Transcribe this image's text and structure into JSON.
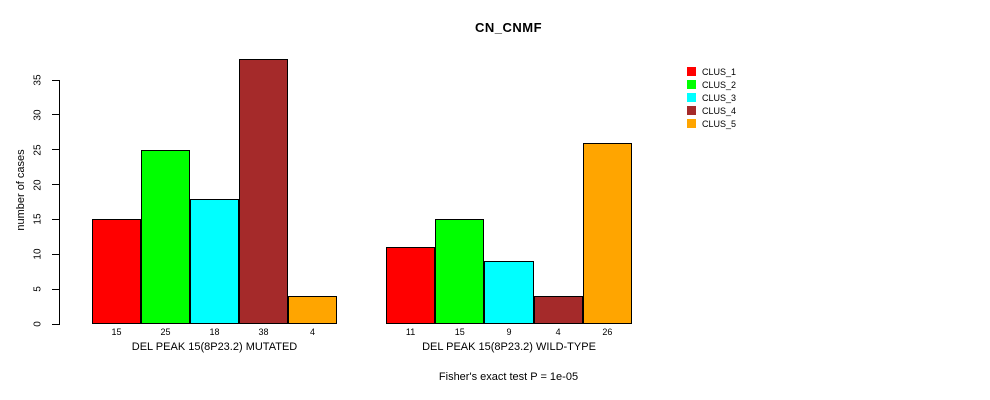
{
  "title": "CN_CNMF",
  "footer": "Fisher's exact test P = 1e-05",
  "chart_data": {
    "type": "bar",
    "title": "CN_CNMF",
    "xlabel": "",
    "ylabel": "number of cases",
    "ylim": [
      0,
      35
    ],
    "yticks": [
      0,
      5,
      10,
      15,
      20,
      25,
      30,
      35
    ],
    "grid": false,
    "bar_borders": "#000000",
    "legend_position": "top-right-outside",
    "categories": [
      "DEL PEAK 15(8P23.2) MUTATED",
      "DEL PEAK 15(8P23.2) WILD-TYPE"
    ],
    "series": [
      {
        "name": "CLUS_1",
        "color": "#ff0000",
        "values": [
          15,
          11
        ]
      },
      {
        "name": "CLUS_2",
        "color": "#00ff00",
        "values": [
          25,
          15
        ]
      },
      {
        "name": "CLUS_3",
        "color": "#00ffff",
        "values": [
          18,
          9
        ]
      },
      {
        "name": "CLUS_4",
        "color": "#a52a2a",
        "values": [
          38,
          4
        ]
      },
      {
        "name": "CLUS_5",
        "color": "#ffa500",
        "values": [
          4,
          26
        ]
      }
    ],
    "bar_value_labels": {
      "DEL PEAK 15(8P23.2) MUTATED": [
        15,
        25,
        18,
        38,
        4
      ],
      "DEL PEAK 15(8P23.2) WILD-TYPE": [
        11,
        15,
        9,
        4,
        26
      ]
    },
    "annotation": "Fisher's exact test P = 1e-05"
  }
}
